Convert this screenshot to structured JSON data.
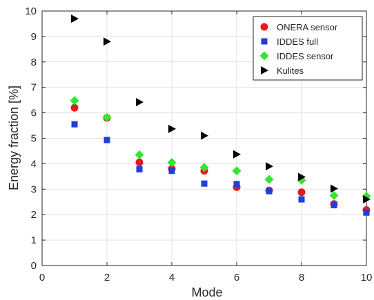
{
  "chart_data": {
    "type": "scatter",
    "title": "",
    "xlabel": "Mode",
    "ylabel": "Energy fraction [%]",
    "xlim": [
      0,
      10
    ],
    "ylim": [
      0,
      10
    ],
    "xticks": [
      "0",
      "2",
      "4",
      "6",
      "8",
      "10"
    ],
    "yticks": [
      "0",
      "1",
      "2",
      "3",
      "4",
      "5",
      "6",
      "7",
      "8",
      "9",
      "10"
    ],
    "grid": true,
    "legend_position": "top-right",
    "x": [
      1,
      2,
      3,
      4,
      5,
      6,
      7,
      8,
      9,
      10
    ],
    "series": [
      {
        "name": "ONERA sensor",
        "marker": "circle",
        "color": "#e41a1c",
        "values": [
          6.2,
          5.8,
          4.05,
          3.8,
          3.72,
          3.08,
          2.95,
          2.88,
          2.42,
          2.18
        ]
      },
      {
        "name": "IDDES full",
        "marker": "square",
        "color": "#1f3fd9",
        "values": [
          5.55,
          4.93,
          3.78,
          3.72,
          3.22,
          3.2,
          2.92,
          2.6,
          2.37,
          2.08
        ]
      },
      {
        "name": "IDDES sensor",
        "marker": "diamond",
        "color": "#33e62e",
        "values": [
          6.48,
          5.82,
          4.35,
          4.05,
          3.85,
          3.72,
          3.38,
          3.35,
          2.75,
          2.72
        ]
      },
      {
        "name": "Kulites",
        "marker": "triangle-right",
        "color": "#000000",
        "values": [
          9.7,
          8.8,
          6.42,
          5.37,
          5.1,
          4.37,
          3.9,
          3.48,
          3.02,
          2.6
        ]
      }
    ]
  }
}
